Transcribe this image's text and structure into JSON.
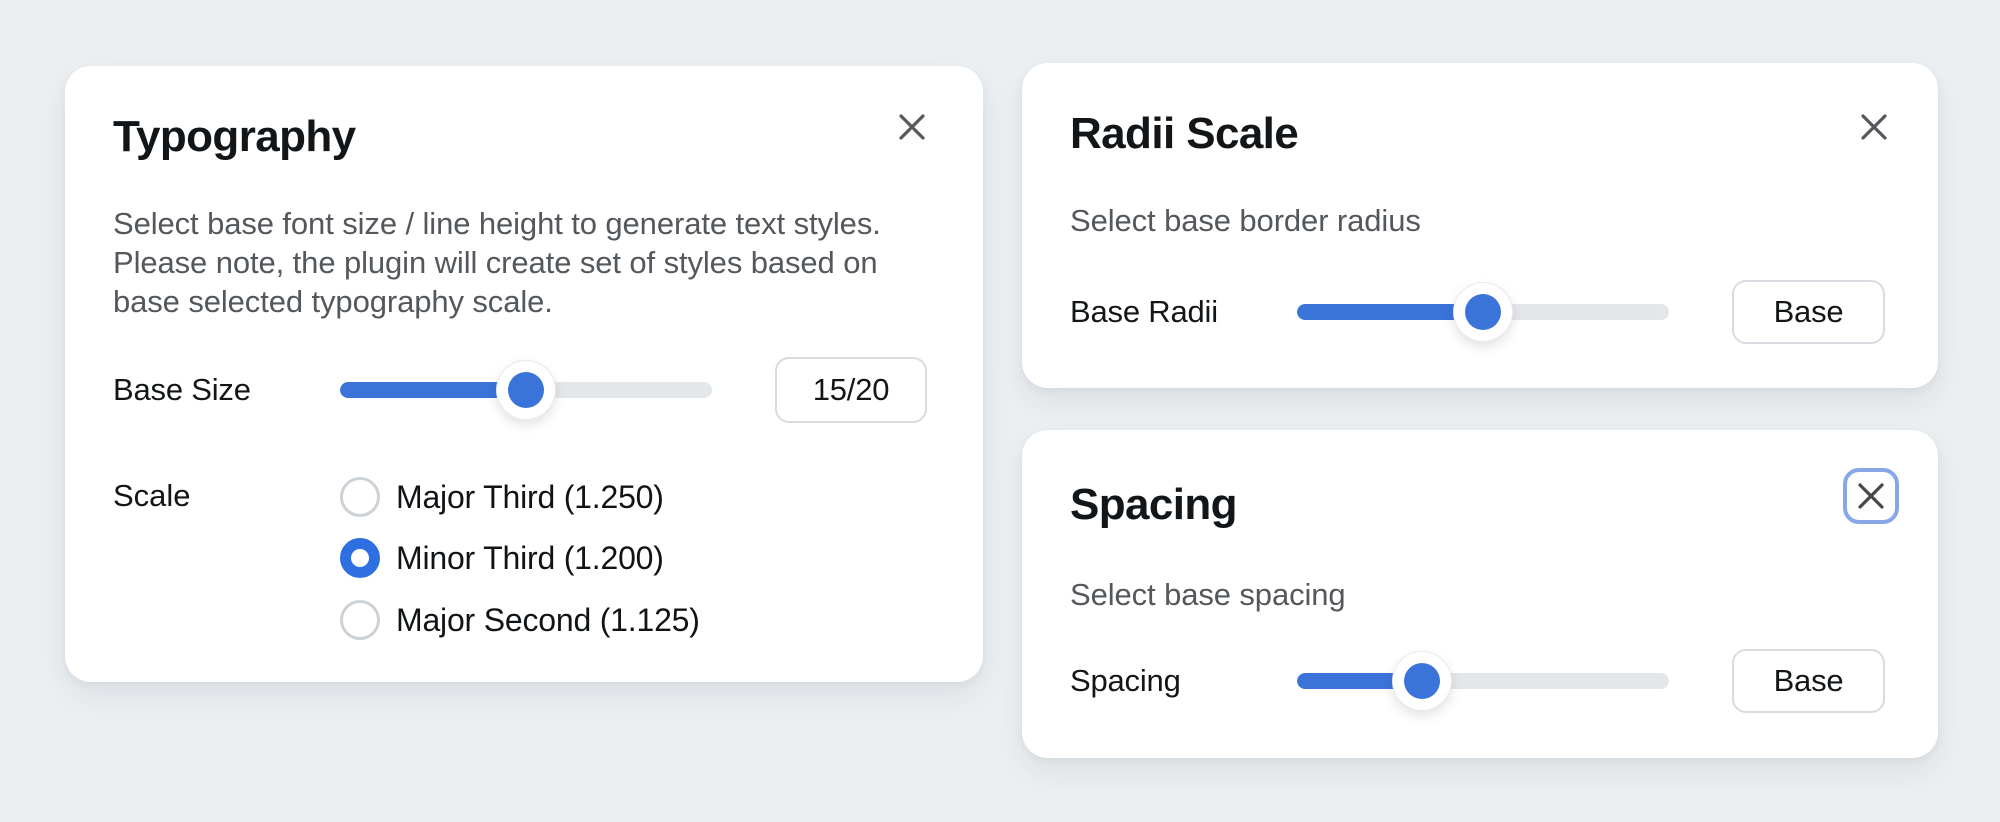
{
  "colors": {
    "background": "#ebeff2",
    "card": "#ffffff",
    "accent_blue": "#3a74d9",
    "radio_blue": "#2e6fe2",
    "focus_ring_blue": "#88a6e8",
    "track_gray": "#e4e7ea",
    "border_gray": "#d8dce0",
    "text_primary": "#131619",
    "text_secondary": "#54585d"
  },
  "typography_card": {
    "title": "Typography",
    "description_lines": [
      "Select base font size / line height to generate text styles.",
      "Please note, the plugin will create set of styles based on",
      "base selected typography scale."
    ],
    "base_size_row": {
      "label": "Base Size",
      "slider_percent": 50,
      "value_label": "15/20"
    },
    "scale_group": {
      "label": "Scale",
      "options": [
        {
          "label": "Major Third (1.250)",
          "selected": false
        },
        {
          "label": "Minor Third (1.200)",
          "selected": true
        },
        {
          "label": "Major Second (1.125)",
          "selected": false
        }
      ]
    }
  },
  "radii_card": {
    "title": "Radii Scale",
    "description": "Select base border radius",
    "row": {
      "label": "Base Radii",
      "slider_percent": 50,
      "button_label": "Base"
    }
  },
  "spacing_card": {
    "title": "Spacing",
    "description": "Select base spacing",
    "row": {
      "label": "Spacing",
      "slider_percent": 33.5,
      "button_label": "Base"
    }
  }
}
